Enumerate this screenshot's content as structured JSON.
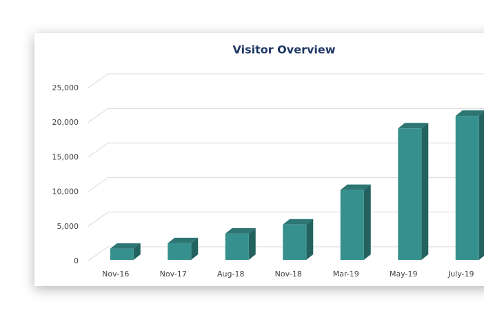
{
  "chart_data": {
    "type": "bar3d",
    "title": "Visitor Overview",
    "categories": [
      "Nov-16",
      "Nov-17",
      "Aug-18",
      "Nov-18",
      "Mar-19",
      "May-19",
      "July-19"
    ],
    "values": [
      1800,
      2600,
      4000,
      5300,
      10300,
      19200,
      21000
    ],
    "color": "#36918e",
    "ylim": [
      0,
      25000
    ],
    "yticks": [
      0,
      {
        "value": 5000,
        "label": "5,000"
      },
      {
        "value": 10000,
        "label": "10,000"
      },
      {
        "value": 15000,
        "label": "15,000"
      },
      {
        "value": 20000,
        "label": "20,000"
      },
      {
        "value": 25000,
        "label": "25,000"
      }
    ],
    "grid": true
  }
}
